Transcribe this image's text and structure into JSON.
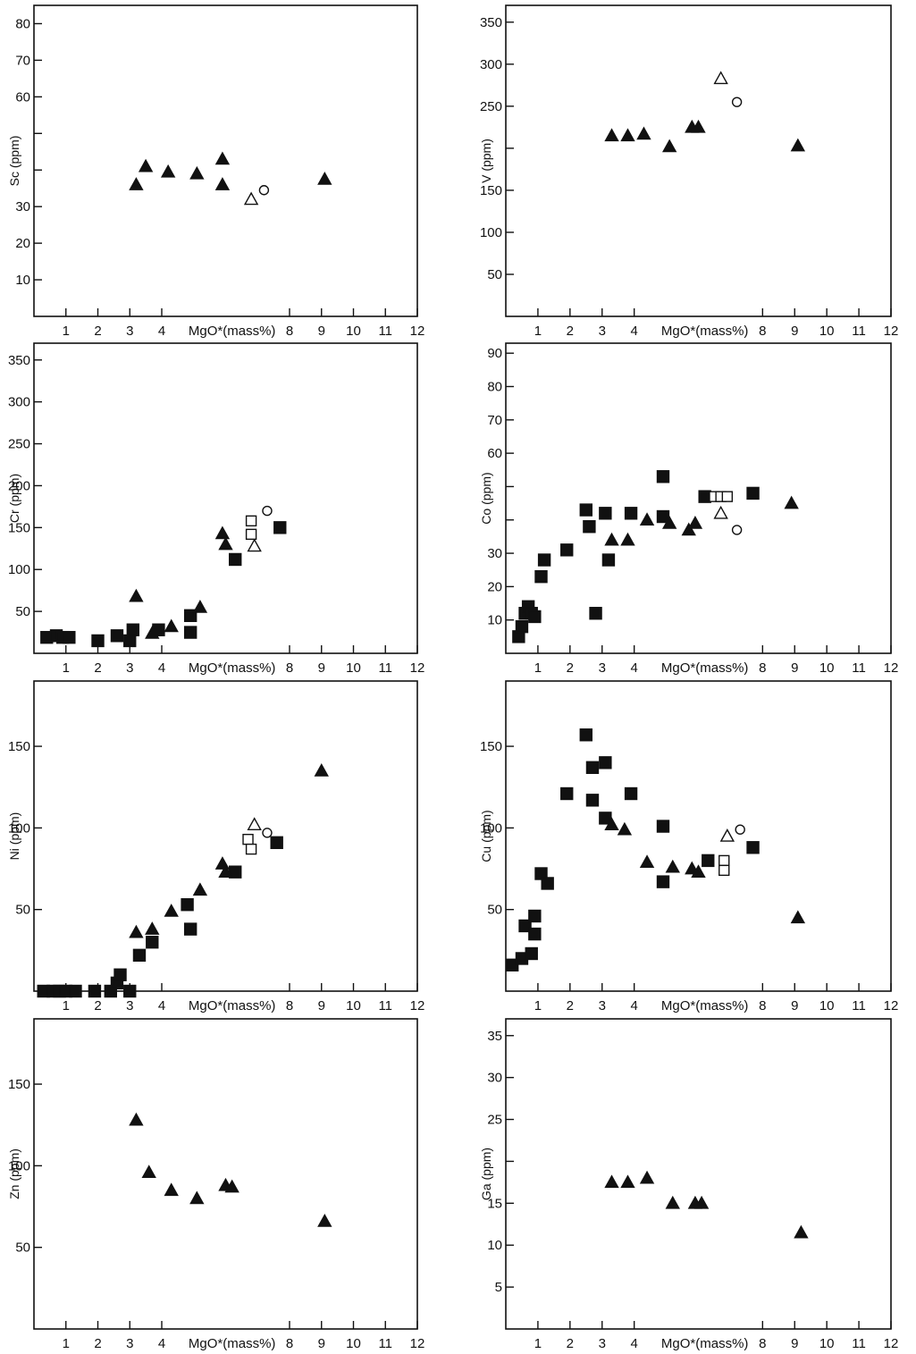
{
  "chart_data": [
    {
      "id": "sc",
      "type": "scatter",
      "ylabel": "Sc (ppm)",
      "xlabel": "MgO*(mass%)",
      "xlim": [
        0,
        12
      ],
      "ylim": [
        0,
        85
      ],
      "x_ticks": [
        1,
        2,
        3,
        4,
        8,
        9,
        10,
        11,
        12
      ],
      "y_ticks": [
        10,
        20,
        30,
        40,
        50,
        60,
        70,
        80
      ],
      "y_tick_labels": [
        "10",
        "20",
        "30",
        "",
        "",
        "60",
        "70",
        "80"
      ],
      "series": [
        {
          "marker": "filled-triangle",
          "points": [
            [
              3.2,
              36
            ],
            [
              3.5,
              41
            ],
            [
              4.2,
              39.5
            ],
            [
              5.1,
              39
            ],
            [
              5.9,
              43
            ],
            [
              5.9,
              36
            ],
            [
              9.1,
              37.5
            ]
          ]
        },
        {
          "marker": "open-triangle",
          "points": [
            [
              6.8,
              32
            ]
          ]
        },
        {
          "marker": "open-circle",
          "points": [
            [
              7.2,
              34.5
            ]
          ]
        }
      ]
    },
    {
      "id": "v",
      "type": "scatter",
      "ylabel": "V (ppm)",
      "xlabel": "MgO*(mass%)",
      "xlim": [
        0,
        12
      ],
      "ylim": [
        0,
        370
      ],
      "x_ticks": [
        1,
        2,
        3,
        4,
        8,
        9,
        10,
        11,
        12
      ],
      "y_ticks": [
        50,
        100,
        150,
        200,
        250,
        300,
        350
      ],
      "y_tick_labels": [
        "50",
        "100",
        "150",
        "",
        "250",
        "300",
        "350"
      ],
      "series": [
        {
          "marker": "filled-triangle",
          "points": [
            [
              3.3,
              215
            ],
            [
              3.8,
              215
            ],
            [
              4.3,
              217
            ],
            [
              5.1,
              202
            ],
            [
              5.8,
              225
            ],
            [
              6.0,
              225
            ],
            [
              9.1,
              203
            ]
          ]
        },
        {
          "marker": "open-triangle",
          "points": [
            [
              6.7,
              283
            ]
          ]
        },
        {
          "marker": "open-circle",
          "points": [
            [
              7.2,
              255
            ]
          ]
        }
      ]
    },
    {
      "id": "cr",
      "type": "scatter",
      "ylabel": "Cr (ppm)",
      "xlabel": "MgO*(mass%)",
      "xlim": [
        0,
        12
      ],
      "ylim": [
        0,
        370
      ],
      "x_ticks": [
        1,
        2,
        3,
        4,
        8,
        9,
        10,
        11,
        12
      ],
      "y_ticks": [
        50,
        100,
        150,
        200,
        250,
        300,
        350
      ],
      "y_tick_labels": [
        "50",
        "100",
        "150",
        "200",
        "250",
        "300",
        "350"
      ],
      "series": [
        {
          "marker": "filled-square",
          "points": [
            [
              0.4,
              19
            ],
            [
              0.7,
              21
            ],
            [
              0.9,
              19
            ],
            [
              1.1,
              19
            ],
            [
              2.0,
              15
            ],
            [
              2.6,
              21
            ],
            [
              3.0,
              15
            ],
            [
              3.1,
              28
            ],
            [
              3.9,
              28
            ],
            [
              4.9,
              45
            ],
            [
              4.9,
              25
            ],
            [
              6.3,
              112
            ],
            [
              7.7,
              150
            ]
          ]
        },
        {
          "marker": "filled-triangle",
          "points": [
            [
              3.2,
              68
            ],
            [
              3.7,
              24
            ],
            [
              4.3,
              32
            ],
            [
              5.2,
              55
            ],
            [
              5.9,
              143
            ],
            [
              6.0,
              130
            ]
          ]
        },
        {
          "marker": "open-square",
          "points": [
            [
              6.8,
              142
            ],
            [
              6.8,
              158
            ]
          ]
        },
        {
          "marker": "open-triangle",
          "points": [
            [
              6.9,
              128
            ]
          ]
        },
        {
          "marker": "open-circle",
          "points": [
            [
              7.3,
              170
            ]
          ]
        }
      ]
    },
    {
      "id": "co",
      "type": "scatter",
      "ylabel": "Co (ppm)",
      "xlabel": "MgO*(mass%)",
      "xlim": [
        0,
        12
      ],
      "ylim": [
        0,
        93
      ],
      "x_ticks": [
        1,
        2,
        3,
        4,
        8,
        9,
        10,
        11,
        12
      ],
      "y_ticks": [
        10,
        20,
        30,
        40,
        50,
        60,
        70,
        80,
        90
      ],
      "y_tick_labels": [
        "10",
        "20",
        "30",
        "",
        "",
        "60",
        "70",
        "80",
        "90"
      ],
      "series": [
        {
          "marker": "filled-square",
          "points": [
            [
              0.4,
              5
            ],
            [
              0.5,
              8
            ],
            [
              0.6,
              12
            ],
            [
              0.7,
              14
            ],
            [
              0.8,
              12
            ],
            [
              0.9,
              11
            ],
            [
              1.1,
              23
            ],
            [
              1.2,
              28
            ],
            [
              1.9,
              31
            ],
            [
              2.5,
              43
            ],
            [
              2.6,
              38
            ],
            [
              2.8,
              12
            ],
            [
              3.1,
              42
            ],
            [
              3.2,
              28
            ],
            [
              3.9,
              42
            ],
            [
              4.9,
              41
            ],
            [
              4.9,
              53
            ],
            [
              6.2,
              47
            ],
            [
              7.7,
              48
            ]
          ]
        },
        {
          "marker": "filled-triangle",
          "points": [
            [
              3.3,
              34
            ],
            [
              3.8,
              34
            ],
            [
              4.4,
              40
            ],
            [
              5.1,
              39
            ],
            [
              5.7,
              37
            ],
            [
              5.9,
              39
            ],
            [
              8.9,
              45
            ]
          ]
        },
        {
          "marker": "open-square",
          "points": [
            [
              6.5,
              47
            ],
            [
              6.7,
              47
            ],
            [
              6.9,
              47
            ]
          ]
        },
        {
          "marker": "open-triangle",
          "points": [
            [
              6.7,
              42
            ]
          ]
        },
        {
          "marker": "open-circle",
          "points": [
            [
              7.2,
              37
            ]
          ]
        }
      ]
    },
    {
      "id": "ni",
      "type": "scatter",
      "ylabel": "Ni (ppm)",
      "xlabel": "MgO*(mass%)",
      "xlim": [
        0,
        12
      ],
      "ylim": [
        0,
        190
      ],
      "x_ticks": [
        1,
        2,
        3,
        4,
        8,
        9,
        10,
        11,
        12
      ],
      "y_ticks": [
        50,
        100,
        150
      ],
      "y_tick_labels": [
        "50",
        "100",
        "150"
      ],
      "series": [
        {
          "marker": "filled-square",
          "points": [
            [
              0.3,
              0
            ],
            [
              0.6,
              0
            ],
            [
              0.8,
              0
            ],
            [
              1.0,
              0
            ],
            [
              1.3,
              0
            ],
            [
              1.9,
              0
            ],
            [
              2.4,
              0
            ],
            [
              2.6,
              5
            ],
            [
              2.7,
              10
            ],
            [
              3.0,
              0
            ],
            [
              3.3,
              22
            ],
            [
              3.7,
              30
            ],
            [
              4.8,
              53
            ],
            [
              4.9,
              38
            ],
            [
              6.3,
              73
            ],
            [
              7.6,
              91
            ]
          ]
        },
        {
          "marker": "filled-triangle",
          "points": [
            [
              3.2,
              36
            ],
            [
              3.7,
              38
            ],
            [
              4.3,
              49
            ],
            [
              5.2,
              62
            ],
            [
              5.9,
              78
            ],
            [
              6.0,
              73
            ],
            [
              9.0,
              135
            ]
          ]
        },
        {
          "marker": "open-square",
          "points": [
            [
              6.7,
              93
            ],
            [
              6.8,
              87
            ]
          ]
        },
        {
          "marker": "open-triangle",
          "points": [
            [
              6.9,
              102
            ]
          ]
        },
        {
          "marker": "open-circle",
          "points": [
            [
              7.3,
              97
            ]
          ]
        }
      ]
    },
    {
      "id": "cu",
      "type": "scatter",
      "ylabel": "Cu (ppm)",
      "xlabel": "MgO*(mass%)",
      "xlim": [
        0,
        12
      ],
      "ylim": [
        0,
        190
      ],
      "x_ticks": [
        1,
        2,
        3,
        4,
        8,
        9,
        10,
        11,
        12
      ],
      "y_ticks": [
        50,
        100,
        150
      ],
      "y_tick_labels": [
        "50",
        "100",
        "150"
      ],
      "series": [
        {
          "marker": "filled-square",
          "points": [
            [
              0.2,
              16
            ],
            [
              0.5,
              20
            ],
            [
              0.6,
              40
            ],
            [
              0.8,
              23
            ],
            [
              0.9,
              35
            ],
            [
              0.9,
              46
            ],
            [
              1.1,
              72
            ],
            [
              1.3,
              66
            ],
            [
              1.9,
              121
            ],
            [
              2.5,
              157
            ],
            [
              2.7,
              137
            ],
            [
              2.7,
              117
            ],
            [
              3.1,
              140
            ],
            [
              3.1,
              106
            ],
            [
              3.9,
              121
            ],
            [
              4.9,
              101
            ],
            [
              4.9,
              67
            ],
            [
              6.3,
              80
            ],
            [
              7.7,
              88
            ]
          ]
        },
        {
          "marker": "filled-triangle",
          "points": [
            [
              3.3,
              102
            ],
            [
              3.7,
              99
            ],
            [
              4.4,
              79
            ],
            [
              5.2,
              76
            ],
            [
              5.8,
              75
            ],
            [
              6.0,
              73
            ],
            [
              9.1,
              45
            ]
          ]
        },
        {
          "marker": "open-square",
          "points": [
            [
              6.8,
              80
            ],
            [
              6.8,
              74
            ]
          ]
        },
        {
          "marker": "open-triangle",
          "points": [
            [
              6.9,
              95
            ]
          ]
        },
        {
          "marker": "open-circle",
          "points": [
            [
              7.3,
              99
            ]
          ]
        }
      ]
    },
    {
      "id": "zn",
      "type": "scatter",
      "ylabel": "Zn (ppm)",
      "xlabel": "MgO*(mass%)",
      "xlim": [
        0,
        12
      ],
      "ylim": [
        0,
        190
      ],
      "x_ticks": [
        1,
        2,
        3,
        4,
        8,
        9,
        10,
        11,
        12
      ],
      "y_ticks": [
        50,
        100,
        150
      ],
      "y_tick_labels": [
        "50",
        "100",
        "150"
      ],
      "series": [
        {
          "marker": "filled-triangle",
          "points": [
            [
              3.2,
              128
            ],
            [
              3.6,
              96
            ],
            [
              4.3,
              85
            ],
            [
              5.1,
              80
            ],
            [
              6.0,
              88
            ],
            [
              6.2,
              87
            ],
            [
              9.1,
              66
            ]
          ]
        }
      ]
    },
    {
      "id": "ga",
      "type": "scatter",
      "ylabel": "Ga (ppm)",
      "xlabel": "MgO*(mass%)",
      "xlim": [
        0,
        12
      ],
      "ylim": [
        0,
        37
      ],
      "x_ticks": [
        1,
        2,
        3,
        4,
        8,
        9,
        10,
        11,
        12
      ],
      "y_ticks": [
        5,
        10,
        15,
        20,
        25,
        30,
        35
      ],
      "y_tick_labels": [
        "5",
        "10",
        "15",
        "",
        "25",
        "30",
        "35"
      ],
      "series": [
        {
          "marker": "filled-triangle",
          "points": [
            [
              3.3,
              17.5
            ],
            [
              3.8,
              17.5
            ],
            [
              4.4,
              18
            ],
            [
              5.2,
              15
            ],
            [
              5.9,
              15
            ],
            [
              6.1,
              15
            ],
            [
              9.2,
              11.5
            ]
          ]
        }
      ]
    }
  ]
}
